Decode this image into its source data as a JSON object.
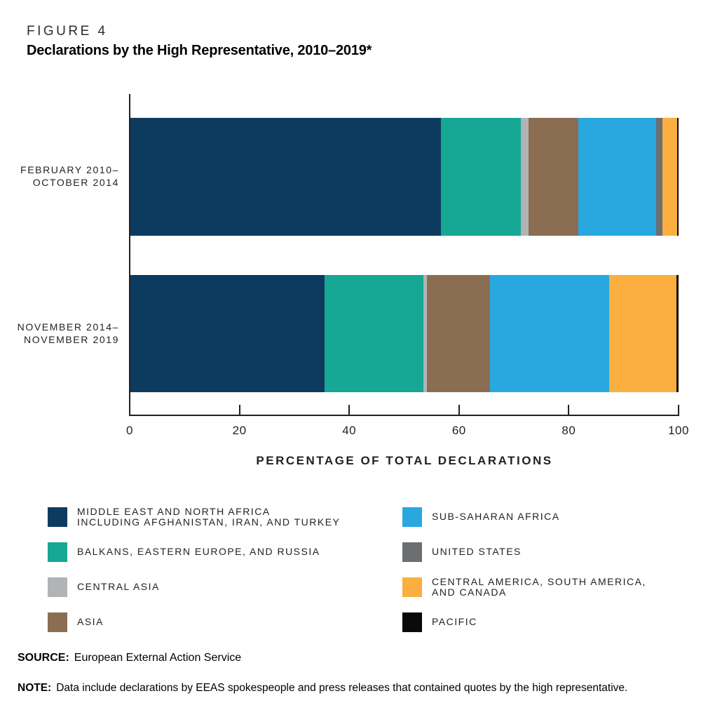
{
  "figure": {
    "label": "FIGURE 4",
    "title": "Declarations by the High Representative, 2010–2019*"
  },
  "chart_data": {
    "type": "bar",
    "orientation": "horizontal",
    "stacked": true,
    "unit": "percent",
    "xlabel": "PERCENTAGE OF TOTAL DECLARATIONS",
    "xlim": [
      0,
      100
    ],
    "xticks": [
      0,
      20,
      40,
      60,
      80,
      100
    ],
    "grid": false,
    "categories": [
      {
        "lines": [
          "FEBRUARY 2010–",
          "OCTOBER 2014"
        ]
      },
      {
        "lines": [
          "NOVEMBER 2014–",
          "NOVEMBER 2019"
        ]
      }
    ],
    "series": [
      {
        "name": "MIDDLE EAST AND NORTH AFRICA INCLUDING AFGHANISTAN, IRAN, AND TURKEY",
        "color": "#0D3B5F",
        "values": [
          56.7,
          35.4
        ]
      },
      {
        "name": "BALKANS, EASTERN EUROPE, AND RUSSIA",
        "color": "#16A795",
        "values": [
          14.5,
          18.0
        ]
      },
      {
        "name": "CENTRAL ASIA",
        "color": "#B1B3B5",
        "values": [
          1.5,
          0.7
        ]
      },
      {
        "name": "ASIA",
        "color": "#8B6D52",
        "values": [
          9.0,
          11.5
        ]
      },
      {
        "name": "SUB-SAHARAN AFRICA",
        "color": "#29A8E0",
        "values": [
          14.2,
          21.8
        ]
      },
      {
        "name": "UNITED STATES",
        "color": "#6D6E71",
        "values": [
          1.2,
          0.0
        ]
      },
      {
        "name": "CENTRAL AMERICA, SOUTH AMERICA, AND CANADA",
        "color": "#FAAF40",
        "values": [
          2.6,
          12.2
        ]
      },
      {
        "name": "PACIFIC",
        "color": "#0A0A0A",
        "values": [
          0.3,
          0.4
        ]
      }
    ]
  },
  "legend": {
    "columns": [
      {
        "items": [
          {
            "color": "#0D3B5F",
            "lines": [
              "MIDDLE EAST AND NORTH AFRICA",
              "INCLUDING AFGHANISTAN, IRAN, AND TURKEY"
            ]
          },
          {
            "color": "#16A795",
            "lines": [
              "BALKANS, EASTERN EUROPE, AND RUSSIA"
            ]
          },
          {
            "color": "#B1B3B5",
            "lines": [
              "CENTRAL ASIA"
            ]
          },
          {
            "color": "#8B6D52",
            "lines": [
              "ASIA"
            ]
          }
        ]
      },
      {
        "items": [
          {
            "color": "#29A8E0",
            "lines": [
              "SUB-SAHARAN AFRICA"
            ]
          },
          {
            "color": "#6D6E71",
            "lines": [
              "UNITED STATES"
            ]
          },
          {
            "color": "#FAAF40",
            "lines": [
              "CENTRAL AMERICA, SOUTH AMERICA,",
              "AND CANADA"
            ]
          },
          {
            "color": "#0A0A0A",
            "lines": [
              "PACIFIC"
            ]
          }
        ]
      }
    ]
  },
  "source": {
    "label": "SOURCE:",
    "text": "European External Action Service"
  },
  "note": {
    "label": "NOTE:",
    "text": "Data include declarations by EEAS spokespeople and press releases that contained quotes by the high representative."
  }
}
